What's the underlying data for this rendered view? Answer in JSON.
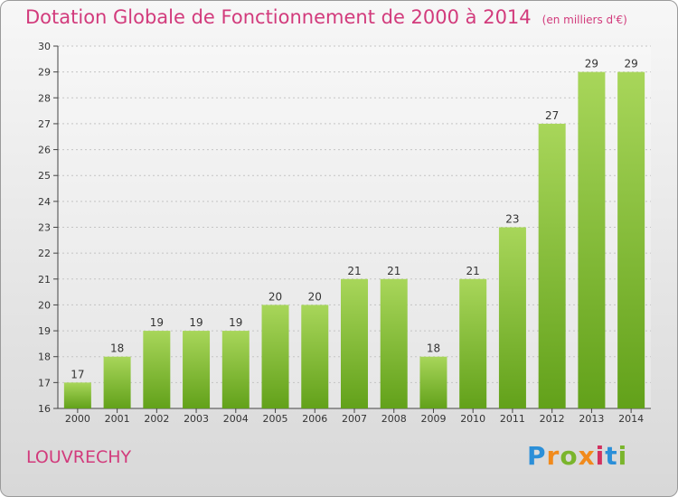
{
  "title": "Dotation Globale de Fonctionnement de 2000 à 2014",
  "unit": "(en milliers d'€)",
  "place": "LOUVRECHY",
  "logo": {
    "letters": [
      "P",
      "r",
      "o",
      "x",
      "i",
      "t",
      "i"
    ],
    "colors": [
      "#2b8fd8",
      "#f18a1c",
      "#7ab52c",
      "#f18a1c",
      "#d2305f",
      "#2b8fd8",
      "#7ab52c"
    ]
  },
  "colors": {
    "bar_light": "#a8d65a",
    "bar_dark": "#62a11a",
    "accent": "#d23b7c"
  },
  "chart_data": {
    "type": "bar",
    "categories": [
      "2000",
      "2001",
      "2002",
      "2003",
      "2004",
      "2005",
      "2006",
      "2007",
      "2008",
      "2009",
      "2010",
      "2011",
      "2012",
      "2013",
      "2014"
    ],
    "values": [
      17,
      18,
      19,
      19,
      19,
      20,
      20,
      21,
      21,
      18,
      21,
      23,
      27,
      29,
      29
    ],
    "ylim": [
      16,
      30
    ],
    "yticks": [
      16,
      17,
      18,
      19,
      20,
      21,
      22,
      23,
      24,
      25,
      26,
      27,
      28,
      29,
      30
    ],
    "grid": true,
    "legend": "none"
  }
}
